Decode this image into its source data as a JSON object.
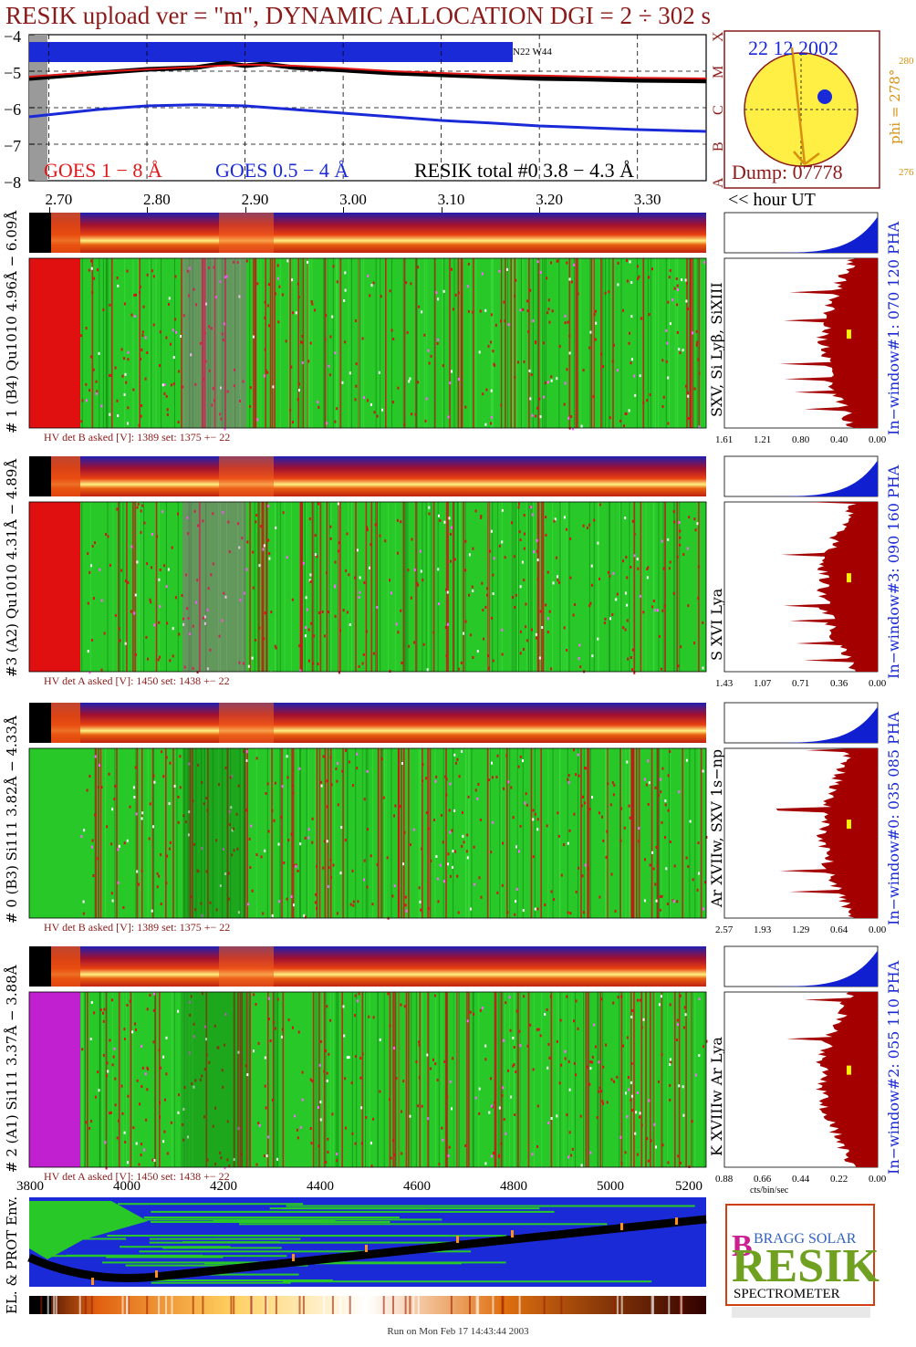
{
  "title": "RESIK upload ver = \"m\", DYNAMIC ALLOCATION  DGI =   2 ÷ 302 s",
  "colors": {
    "goes_long": "#e01818",
    "goes_short": "#1a2ad6",
    "resik": "#000000",
    "maroon": "#8b1a1a",
    "sun": "#ffee44",
    "hist_fill": "#a50000",
    "hist_blue": "#1020d0"
  },
  "top_panel": {
    "y_ticks": [
      "−4",
      "−5",
      "−6",
      "−7",
      "−8"
    ],
    "class_letters": [
      "X",
      "M",
      "C",
      "B",
      "A"
    ],
    "region_label": "N22 W44",
    "legend": {
      "goes_long": "GOES 1 − 8 Å",
      "goes_short": "GOES 0.5 − 4 Å",
      "resik": "RESIK total #0  3.8 − 4.3 Å"
    }
  },
  "sun_panel": {
    "date": "22 12 2002",
    "dump": "Dump: 07778",
    "phi_label": "phi = 278°",
    "phi_top": "280",
    "phi_bottom": "276"
  },
  "chart_data": [
    {
      "type": "line",
      "title": "",
      "ylabel": "",
      "ylim": [
        -8,
        -4
      ],
      "x_ticks_hours": [
        "2.70",
        "2.80",
        "2.90",
        "3.00",
        "3.10",
        "3.20",
        "3.30"
      ],
      "xlim": [
        2.68,
        3.37
      ],
      "xlabel": "<< hour UT",
      "series": [
        {
          "name": "GOES 1 − 8 Å",
          "x": [
            2.68,
            2.75,
            2.8,
            2.85,
            2.9,
            2.95,
            3.0,
            3.05,
            3.1,
            3.15,
            3.2,
            3.25,
            3.3,
            3.37
          ],
          "y": [
            -5.15,
            -5.02,
            -4.95,
            -4.88,
            -4.82,
            -4.85,
            -4.92,
            -5.0,
            -5.05,
            -5.1,
            -5.12,
            -5.15,
            -5.18,
            -5.2
          ]
        },
        {
          "name": "GOES 0.5 − 4 Å",
          "x": [
            2.68,
            2.75,
            2.8,
            2.85,
            2.9,
            2.95,
            3.0,
            3.05,
            3.1,
            3.15,
            3.2,
            3.25,
            3.3,
            3.37
          ],
          "y": [
            -6.25,
            -6.05,
            -5.95,
            -5.92,
            -5.95,
            -6.05,
            -6.15,
            -6.25,
            -6.35,
            -6.42,
            -6.5,
            -6.55,
            -6.6,
            -6.65
          ]
        },
        {
          "name": "RESIK total #0  3.8 − 4.3 Å",
          "x": [
            2.68,
            2.75,
            2.8,
            2.85,
            2.88,
            2.9,
            2.92,
            2.95,
            3.0,
            3.05,
            3.1,
            3.15,
            3.2,
            3.25,
            3.3,
            3.37
          ],
          "y": [
            -5.2,
            -5.05,
            -4.95,
            -4.9,
            -4.78,
            -4.85,
            -4.8,
            -4.9,
            -4.97,
            -5.05,
            -5.1,
            -5.15,
            -5.2,
            -5.22,
            -5.25,
            -5.27
          ]
        }
      ]
    },
    {
      "type": "heatmap",
      "title": "",
      "xlabel": "",
      "x_ticks_channels": [
        "3800",
        "4000",
        "4200",
        "4400",
        "4600",
        "4800",
        "5000",
        "5200"
      ],
      "xlim": [
        3800,
        5200
      ]
    }
  ],
  "channels": [
    {
      "id": "1",
      "left_label": "# 1 (B4) Qu1010 4.96Å − 6.09Å",
      "lines_label": "SXV, Si Lyβ, SiXIII",
      "window_label": "In−window#1:  070 120 PHA",
      "hv": "HV det B asked [V]:  1389 set:  1375  +−   22",
      "hist_ticks": [
        "1.61",
        "1.21",
        "0.80",
        "0.40",
        "0.00"
      ]
    },
    {
      "id": "3",
      "left_label": "#3 (A2) Qu1010  4.31Å − 4.89Å",
      "lines_label": "S XVI Lya",
      "window_label": "In−window#3:  090 160 PHA",
      "hv": "HV det A asked [V]:  1450 set:  1438  +−   22",
      "hist_ticks": [
        "1.43",
        "1.07",
        "0.71",
        "0.36",
        "0.00"
      ]
    },
    {
      "id": "0",
      "left_label": "# 0 (B3) Si111  3.82Å − 4.33Å",
      "lines_label": "Ar XVIIw,  SXV 1s−np",
      "window_label": "In−window#0:  035 085 PHA",
      "hv": "HV det B asked [V]:  1389 set:  1375  +−   22",
      "hist_ticks": [
        "2.57",
        "1.93",
        "1.29",
        "0.64",
        "0.00"
      ]
    },
    {
      "id": "2",
      "left_label": "# 2 (A1) Si111  3.37Å − 3.88Å",
      "lines_label": "K XVIIIw  Ar Lya",
      "window_label": "In−window#2:  055 110 PHA",
      "hv": "HV det A asked [V]:  1450 set:  1438  +−   22",
      "hist_ticks": [
        "0.88",
        "0.66",
        "0.44",
        "0.22",
        "0.00"
      ],
      "hist_unit": "cts/bin/sec"
    }
  ],
  "bottom": {
    "env_label": "EL. & PROT Env."
  },
  "logo": {
    "letters": "RESIK",
    "small": "BRAGG SOLAR",
    "word": "SPECTROMETER"
  },
  "footer": "Run on Mon Feb 17 14:43:44 2003"
}
